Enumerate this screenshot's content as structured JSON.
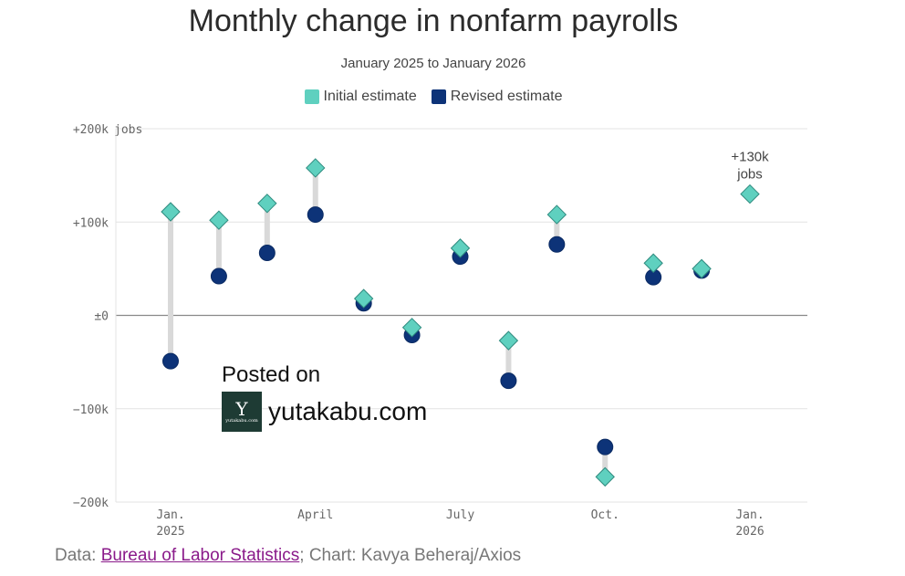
{
  "chart_data": {
    "type": "scatter",
    "title": "Monthly change in nonfarm payrolls",
    "subtitle": "January 2025 to January 2026",
    "y_unit_label": "jobs",
    "ylim": [
      -200,
      200
    ],
    "yticks": [
      {
        "value": 200,
        "label": "+200k"
      },
      {
        "value": 100,
        "label": "+100k"
      },
      {
        "value": 0,
        "label": "±0"
      },
      {
        "value": -100,
        "label": "−100k"
      },
      {
        "value": -200,
        "label": "−200k"
      }
    ],
    "xticks": [
      {
        "index": 0,
        "line1": "Jan.",
        "line2": "2025"
      },
      {
        "index": 3,
        "line1": "April",
        "line2": ""
      },
      {
        "index": 6,
        "line1": "July",
        "line2": ""
      },
      {
        "index": 9,
        "line1": "Oct.",
        "line2": ""
      },
      {
        "index": 12,
        "line1": "Jan.",
        "line2": "2026"
      }
    ],
    "categories": [
      "Jan 2025",
      "Feb 2025",
      "Mar 2025",
      "Apr 2025",
      "May 2025",
      "Jun 2025",
      "Jul 2025",
      "Aug 2025",
      "Sep 2025",
      "Oct 2025",
      "Nov 2025",
      "Dec 2025",
      "Jan 2026"
    ],
    "series": [
      {
        "name": "Initial estimate",
        "color": "#5fd0bf",
        "marker": "diamond",
        "values": [
          111,
          102,
          120,
          158,
          18,
          -13,
          72,
          -27,
          108,
          -173,
          56,
          50,
          130
        ]
      },
      {
        "name": "Revised estimate",
        "color": "#0d3378",
        "marker": "circle",
        "values": [
          -49,
          42,
          67,
          108,
          13,
          -21,
          63,
          -70,
          76,
          -141,
          41,
          48,
          null
        ]
      }
    ],
    "annotation": {
      "index": 12,
      "line1": "+130k",
      "line2": "jobs"
    },
    "grid": true,
    "legend_position": "top-center"
  },
  "source": {
    "prefix": "Data: ",
    "link_text": "Bureau of Labor Statistics",
    "suffix": "; Chart: Kavya Beheraj/Axios"
  },
  "watermark": {
    "line1": "Posted on",
    "site": "yutakabu.com",
    "logo_letter": "Y",
    "logo_small": "yutakabu.com"
  }
}
